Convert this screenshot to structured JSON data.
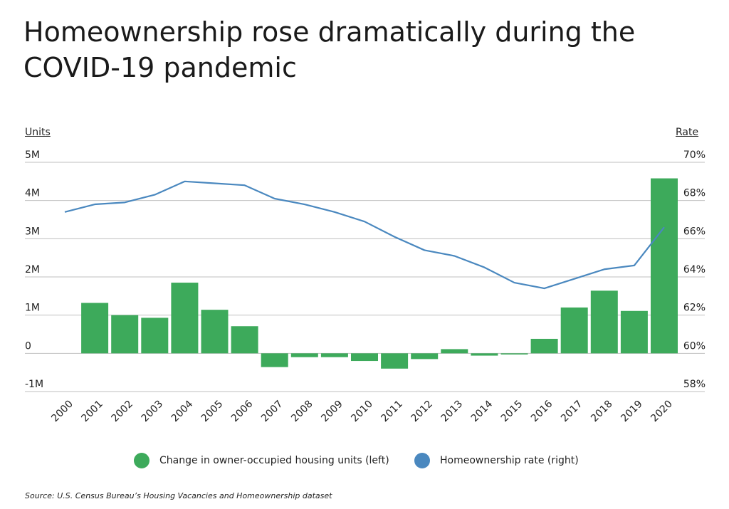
{
  "title": "Homeownership rose dramatically during the COVID-19 pandemic",
  "left_axis_title": "Units",
  "right_axis_title": "Rate",
  "source": "Source:  U.S. Census Bureau’s Housing Vacancies and Homeownership dataset",
  "colors": {
    "bars": "#3daa5b",
    "line": "#4a88bf",
    "grid": "#bfbfbf"
  },
  "chart_data": {
    "type": "bar",
    "categories": [
      "2000",
      "2001",
      "2002",
      "2003",
      "2004",
      "2005",
      "2006",
      "2007",
      "2008",
      "2009",
      "2010",
      "2011",
      "2012",
      "2013",
      "2014",
      "2015",
      "2016",
      "2017",
      "2018",
      "2019",
      "2020"
    ],
    "series": [
      {
        "name": "Change in owner-occupied housing units (left)",
        "type": "bar",
        "axis": "left",
        "values": [
          null,
          1.32,
          1.0,
          0.93,
          1.85,
          1.14,
          0.71,
          -0.36,
          -0.1,
          -0.1,
          -0.2,
          -0.4,
          -0.15,
          0.11,
          -0.06,
          -0.03,
          0.38,
          1.2,
          1.64,
          1.11,
          4.58
        ]
      },
      {
        "name": "Homeownership rate (right)",
        "type": "line",
        "axis": "right",
        "values": [
          67.4,
          67.8,
          67.9,
          68.3,
          69.0,
          68.9,
          68.8,
          68.1,
          67.8,
          67.4,
          66.9,
          66.1,
          65.4,
          65.1,
          64.5,
          63.7,
          63.4,
          63.9,
          64.4,
          64.6,
          66.6
        ]
      }
    ],
    "left_axis": {
      "min": -1,
      "max": 5,
      "ticks": [
        -1,
        0,
        1,
        2,
        3,
        4,
        5
      ],
      "tick_labels": [
        "-1M",
        "0",
        "1M",
        "2M",
        "3M",
        "4M",
        "5M"
      ]
    },
    "right_axis": {
      "min": 58,
      "max": 70,
      "ticks": [
        58,
        60,
        62,
        64,
        66,
        68,
        70
      ],
      "tick_labels": [
        "58%",
        "60%",
        "62%",
        "64%",
        "66%",
        "68%",
        "70%"
      ]
    },
    "grid": true,
    "legend_position": "bottom"
  }
}
